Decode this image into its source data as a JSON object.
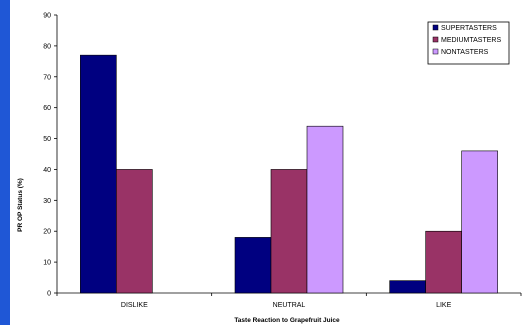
{
  "chart_data": {
    "type": "bar",
    "categories": [
      "DISLIKE",
      "NEUTRAL",
      "LIKE"
    ],
    "series": [
      {
        "name": "SUPERTASTERS",
        "values": [
          77,
          18,
          4
        ],
        "color": "#000080"
      },
      {
        "name": "MEDIUMTASTERS",
        "values": [
          40,
          40,
          20
        ],
        "color": "#993366"
      },
      {
        "name": "NONTASTERS",
        "values": [
          0,
          54,
          46
        ],
        "color": "#CC99FF"
      }
    ],
    "title": "",
    "xlabel": "Taste Reaction to Grapefruit Juice",
    "ylabel": "PR OP Status (%)",
    "ylim": [
      0,
      90
    ],
    "yticks": [
      0,
      10,
      20,
      30,
      40,
      50,
      60,
      70,
      80,
      90
    ],
    "grid": false,
    "legend_position": "top-right",
    "colors": {
      "page_background": "#ffffff",
      "plot_background": "#ffffff",
      "left_strip": "#1f57d6"
    }
  }
}
